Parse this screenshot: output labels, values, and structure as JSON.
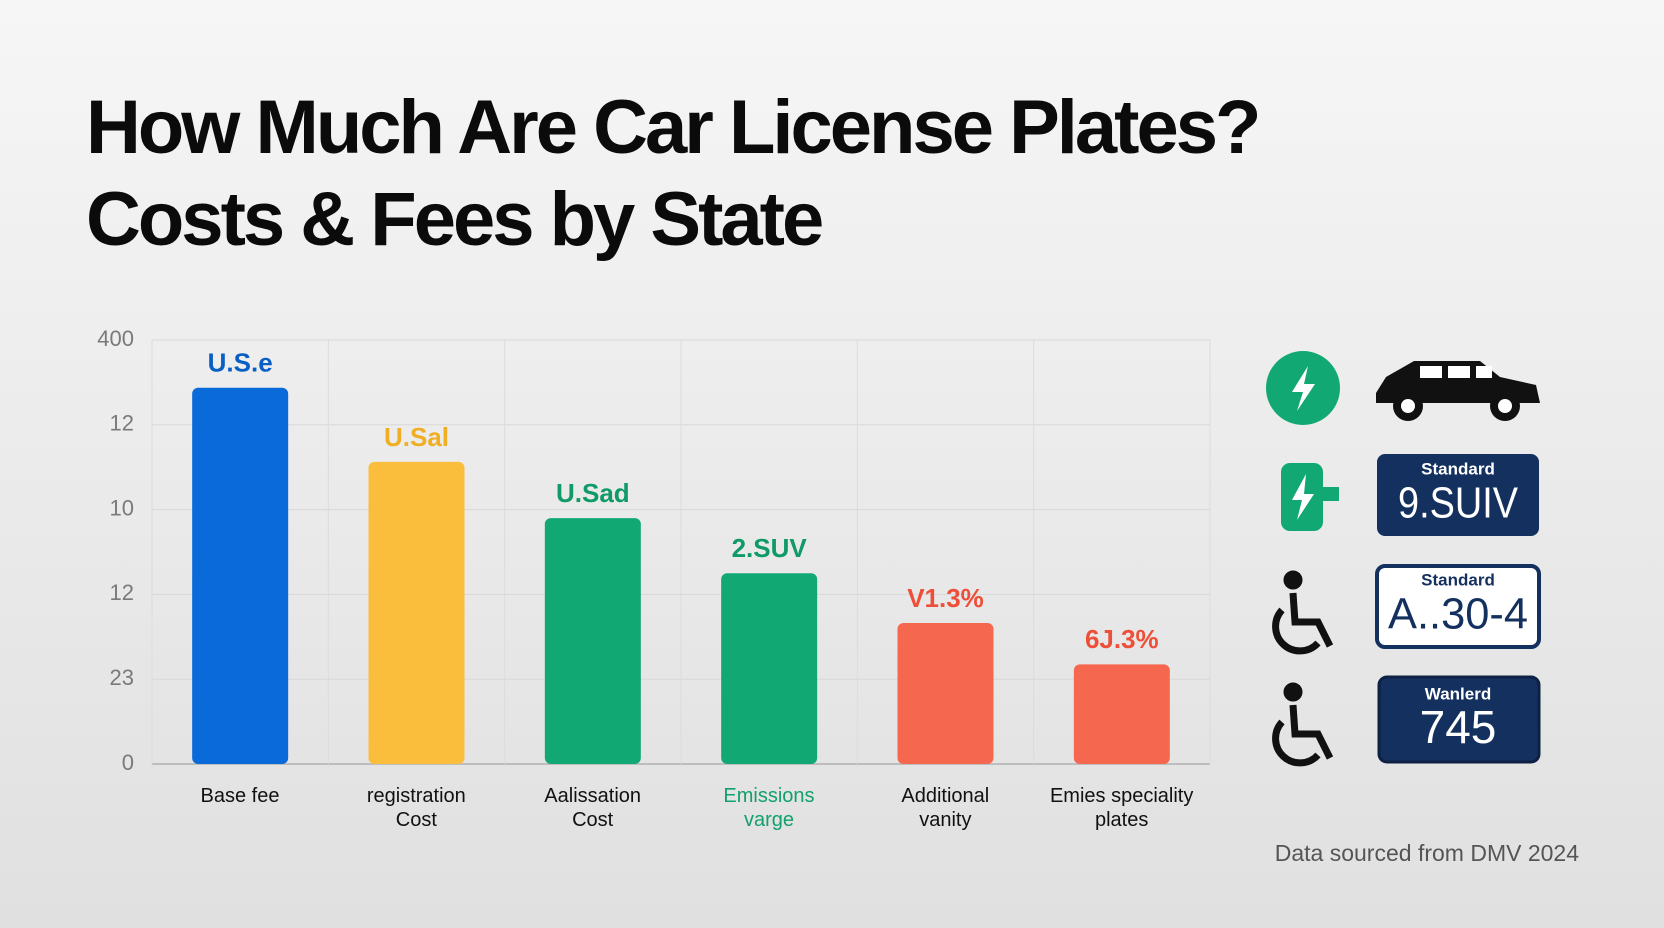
{
  "chart_data": {
    "type": "bar",
    "title": "How Much Are Car License Plates?\nCosts & Fees by State",
    "categories": [
      "Base fee",
      "registration\nCost",
      "Aalissation\nCost",
      "Emissions\nvarge",
      "Additional\nvanity",
      "Emies speciality\nplates"
    ],
    "category_colors": [
      "#111111",
      "#111111",
      "#111111",
      "#12a06c",
      "#111111",
      "#111111"
    ],
    "values": [
      355,
      285,
      232,
      180,
      133,
      94
    ],
    "value_labels": [
      "U.S.e",
      "U.Sal",
      "U.Sad",
      "2.SUV",
      "V1.3%",
      "6J.3%"
    ],
    "colors": [
      "#0a6ad9",
      "#fbbd3c",
      "#12a874",
      "#12a874",
      "#f5674f",
      "#f5674f"
    ],
    "label_colors": [
      "#0a5fc4",
      "#f0ae24",
      "#0f9a68",
      "#0f9a68",
      "#ee4f38",
      "#ee4f38"
    ],
    "ylim": [
      0,
      400
    ],
    "yticks": [
      {
        "value": 0,
        "label": "0"
      },
      {
        "value": 80,
        "label": "23"
      },
      {
        "value": 160,
        "label": "12"
      },
      {
        "value": 240,
        "label": "10"
      },
      {
        "value": 320,
        "label": "12"
      },
      400
    ],
    "grid": true
  },
  "plates": [
    {
      "top": "Standard",
      "number": "9.SUIV"
    },
    {
      "top": "Standard",
      "number": "A..30-4"
    },
    {
      "top": "Wanlerd",
      "number": "745"
    }
  ],
  "source": "Data sourced from DMV 2024"
}
